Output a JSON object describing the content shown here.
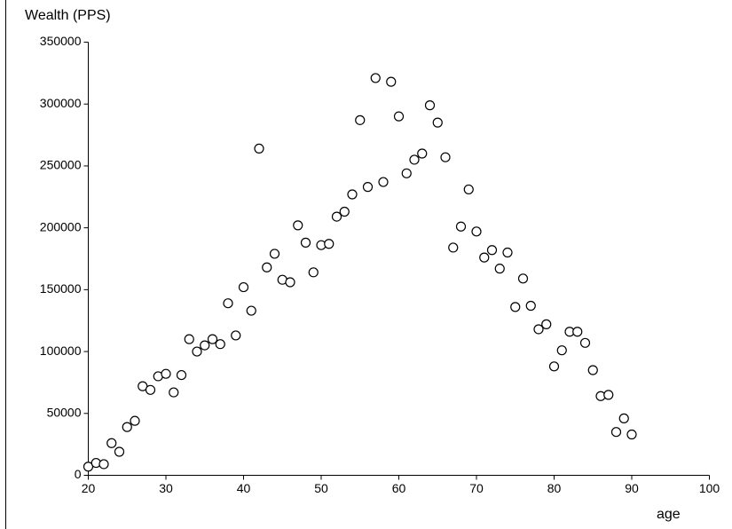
{
  "chart_data": {
    "type": "scatter",
    "ylabel": "Wealth (PPS)",
    "xlabel": "age",
    "x": [
      20,
      21,
      22,
      23,
      24,
      25,
      26,
      27,
      28,
      29,
      30,
      31,
      32,
      33,
      34,
      35,
      36,
      37,
      38,
      39,
      40,
      41,
      42,
      43,
      44,
      45,
      46,
      47,
      48,
      49,
      50,
      51,
      52,
      53,
      54,
      55,
      56,
      57,
      58,
      59,
      60,
      61,
      62,
      63,
      64,
      65,
      66,
      67,
      68,
      69,
      70,
      71,
      72,
      73,
      74,
      75,
      76,
      77,
      78,
      79,
      80,
      81,
      82,
      83,
      84,
      85,
      86,
      87,
      88,
      89,
      90
    ],
    "values": [
      7000,
      10000,
      9000,
      26000,
      19000,
      39000,
      44000,
      72000,
      69000,
      80000,
      82000,
      67000,
      81000,
      110000,
      100000,
      105000,
      110000,
      106000,
      139000,
      113000,
      152000,
      133000,
      264000,
      168000,
      179000,
      158000,
      156000,
      202000,
      188000,
      164000,
      186000,
      187000,
      209000,
      213000,
      227000,
      287000,
      233000,
      321000,
      237000,
      318000,
      290000,
      244000,
      255000,
      260000,
      299000,
      285000,
      257000,
      184000,
      201000,
      231000,
      197000,
      176000,
      182000,
      167000,
      180000,
      136000,
      159000,
      137000,
      118000,
      122000,
      88000,
      101000,
      116000,
      116000,
      107000,
      85000,
      64000,
      65000,
      35000,
      46000,
      33000
    ],
    "color": "#000000",
    "xlim": [
      20,
      100
    ],
    "xticks": [
      20,
      30,
      40,
      50,
      60,
      70,
      80,
      90,
      100
    ],
    "ylim": [
      0,
      350000
    ],
    "yticks": [
      0,
      50000,
      100000,
      150000,
      200000,
      250000,
      300000,
      350000
    ]
  }
}
